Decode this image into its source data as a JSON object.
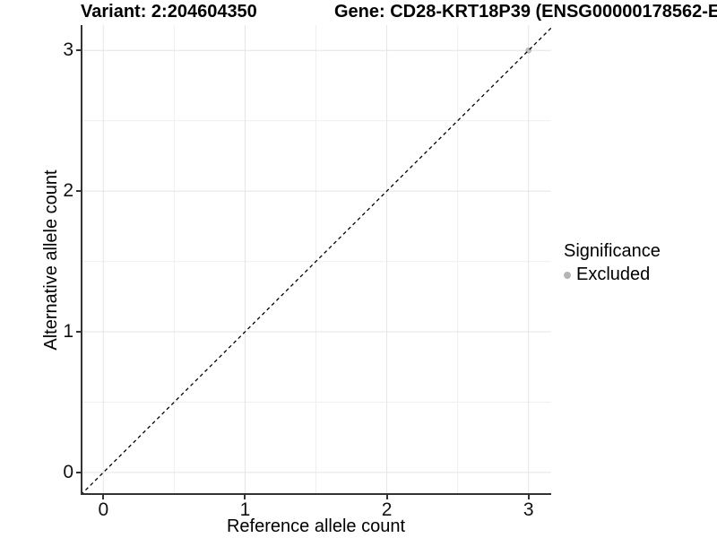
{
  "chart_data": {
    "type": "scatter",
    "titles": {
      "left": "Variant: 2:204604350",
      "right": "Gene: CD28-KRT18P39 (ENSG00000178562-E"
    },
    "xlabel": "Reference allele count",
    "ylabel": "Alternative allele count",
    "x_ticks": [
      0,
      1,
      2,
      3
    ],
    "y_ticks": [
      0,
      1,
      2,
      3
    ],
    "xlim": [
      -0.16,
      3.16
    ],
    "ylim": [
      -0.16,
      3.18
    ],
    "grid": {
      "major": true,
      "minor": true
    },
    "identity_line": {
      "slope": 1,
      "intercept": 0,
      "style": "dashed",
      "color": "#000000"
    },
    "points": [
      {
        "x": 3,
        "y": 3,
        "series": "Excluded",
        "color": "#bebebe"
      }
    ],
    "legend": {
      "title": "Significance",
      "position": "right",
      "entries": [
        {
          "label": "Excluded",
          "color": "#b5b5b5"
        }
      ]
    }
  },
  "colors": {
    "grid_major": "#e4e4e4",
    "grid_minor": "#efefef",
    "axis_line": "#333333",
    "dashed_line": "#000000",
    "point": "#bebebe"
  }
}
